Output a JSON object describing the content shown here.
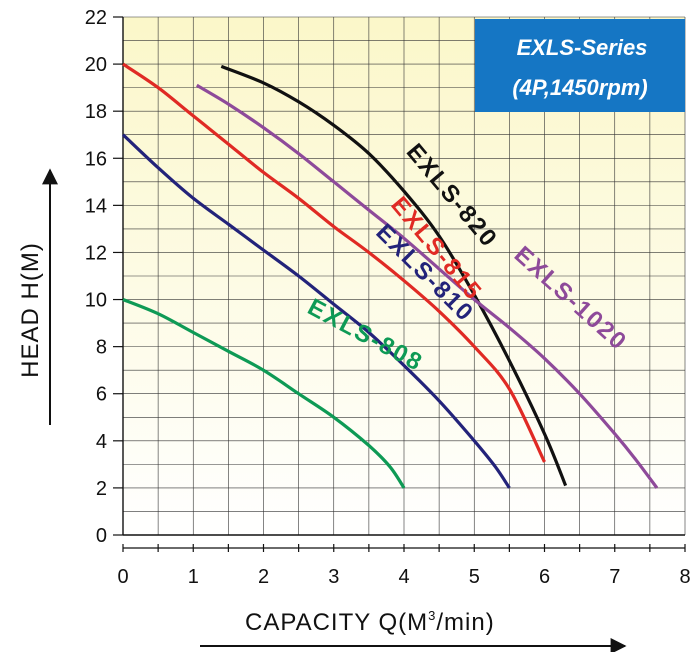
{
  "chart_data": {
    "type": "line",
    "title": "EXLS-Series",
    "subtitle": "(4P,1450rpm)",
    "xlabel": "CAPACITY  Q(M",
    "xlabel_sup": "3",
    "xlabel_tail": "/min)",
    "ylabel": "HEAD  H(M)",
    "xlim": [
      0,
      8
    ],
    "ylim": [
      0,
      22
    ],
    "x_ticks": [
      "0",
      "1",
      "2",
      "3",
      "4",
      "5",
      "6",
      "7",
      "8"
    ],
    "y_ticks": [
      "0",
      "2",
      "4",
      "6",
      "8",
      "10",
      "12",
      "14",
      "16",
      "18",
      "20",
      "22"
    ],
    "grid": true,
    "series": [
      {
        "name": "EXLS-808",
        "color": "#0e9a55",
        "points": [
          [
            0,
            10
          ],
          [
            0.5,
            9.4
          ],
          [
            1,
            8.6
          ],
          [
            1.5,
            7.8
          ],
          [
            2,
            7.0
          ],
          [
            2.5,
            6.0
          ],
          [
            3,
            5.0
          ],
          [
            3.5,
            3.8
          ],
          [
            3.8,
            2.9
          ],
          [
            4,
            2
          ]
        ]
      },
      {
        "name": "EXLS-810",
        "color": "#23237a",
        "points": [
          [
            0,
            17
          ],
          [
            0.5,
            15.6
          ],
          [
            1,
            14.3
          ],
          [
            1.5,
            13.2
          ],
          [
            2,
            12.1
          ],
          [
            2.5,
            11.0
          ],
          [
            3,
            9.8
          ],
          [
            3.5,
            8.6
          ],
          [
            4,
            7.2
          ],
          [
            4.5,
            5.7
          ],
          [
            5,
            4.0
          ],
          [
            5.3,
            2.9
          ],
          [
            5.5,
            2
          ]
        ]
      },
      {
        "name": "EXLS-815",
        "color": "#e02a24",
        "points": [
          [
            0,
            20
          ],
          [
            0.5,
            19.0
          ],
          [
            1,
            17.8
          ],
          [
            1.5,
            16.6
          ],
          [
            2,
            15.4
          ],
          [
            2.5,
            14.3
          ],
          [
            3,
            13.1
          ],
          [
            3.5,
            12.0
          ],
          [
            4,
            10.8
          ],
          [
            4.5,
            9.5
          ],
          [
            5,
            8.0
          ],
          [
            5.5,
            6.2
          ],
          [
            6,
            3.1
          ]
        ]
      },
      {
        "name": "EXLS-820",
        "color": "#111111",
        "points": [
          [
            1.4,
            19.9
          ],
          [
            2,
            19.2
          ],
          [
            2.5,
            18.4
          ],
          [
            3,
            17.4
          ],
          [
            3.5,
            16.2
          ],
          [
            4,
            14.6
          ],
          [
            4.5,
            12.7
          ],
          [
            5,
            10.2
          ],
          [
            5.5,
            7.4
          ],
          [
            6,
            4.3
          ],
          [
            6.3,
            2.1
          ]
        ]
      },
      {
        "name": "EXLS-1020",
        "color": "#8e4a9a",
        "points": [
          [
            1.05,
            19.1
          ],
          [
            1.5,
            18.3
          ],
          [
            2,
            17.3
          ],
          [
            2.5,
            16.2
          ],
          [
            3,
            15.0
          ],
          [
            3.5,
            13.8
          ],
          [
            4,
            12.6
          ],
          [
            4.5,
            11.3
          ],
          [
            5,
            10.0
          ],
          [
            5.5,
            8.8
          ],
          [
            6,
            7.5
          ],
          [
            6.5,
            6.0
          ],
          [
            7,
            4.3
          ],
          [
            7.3,
            3.2
          ],
          [
            7.6,
            2.0
          ]
        ]
      }
    ],
    "labels": [
      {
        "text": "EXLS-808",
        "color": "#0e9a55",
        "at": [
          3.4,
          8.2
        ],
        "angle": 28
      },
      {
        "text": "EXLS-810",
        "color": "#23237a",
        "at": [
          4.22,
          10.9
        ],
        "angle": 45
      },
      {
        "text": "EXLS-815",
        "color": "#e02a24",
        "at": [
          4.38,
          11.95
        ],
        "angle": 50
      },
      {
        "text": "EXLS-820",
        "color": "#111111",
        "at": [
          4.6,
          14.2
        ],
        "angle": 50
      },
      {
        "text": "EXLS-1020",
        "color": "#8e4a9a",
        "at": [
          6.3,
          9.8
        ],
        "angle": 42
      }
    ],
    "accent_box_color": "#1576c4",
    "background_gradient": [
      "#fbf7c9",
      "#ffffff"
    ]
  }
}
